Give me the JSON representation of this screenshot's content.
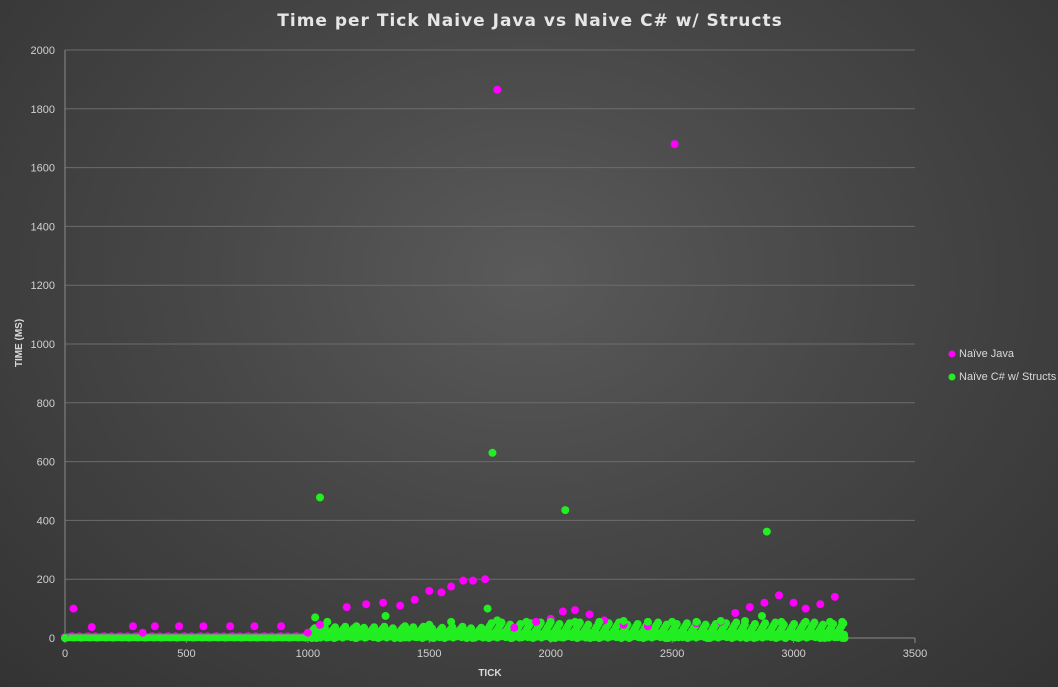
{
  "chart_data": {
    "type": "scatter",
    "title": "Time per Tick Naive Java vs Naive C# w/ Structs",
    "xlabel": "TICK",
    "ylabel": "TIME (MS)",
    "xlim": [
      0,
      3500
    ],
    "ylim": [
      0,
      2000
    ],
    "x_ticks": [
      0,
      500,
      1000,
      1500,
      2000,
      2500,
      3000,
      3500
    ],
    "y_ticks": [
      0,
      200,
      400,
      600,
      800,
      1000,
      1200,
      1400,
      1600,
      1800,
      2000
    ],
    "grid": true,
    "legend_position": "right",
    "series": [
      {
        "name": "Naïve Java",
        "color": "#ff00ff",
        "points": [
          [
            0,
            3
          ],
          [
            35,
            100
          ],
          [
            110,
            37
          ],
          [
            280,
            40
          ],
          [
            320,
            18
          ],
          [
            370,
            40
          ],
          [
            470,
            40
          ],
          [
            570,
            40
          ],
          [
            680,
            40
          ],
          [
            780,
            40
          ],
          [
            890,
            40
          ],
          [
            1000,
            18
          ],
          [
            1050,
            45
          ],
          [
            1160,
            105
          ],
          [
            1240,
            115
          ],
          [
            1310,
            120
          ],
          [
            1380,
            110
          ],
          [
            1440,
            130
          ],
          [
            1500,
            160
          ],
          [
            1550,
            155
          ],
          [
            1590,
            175
          ],
          [
            1640,
            195
          ],
          [
            1680,
            195
          ],
          [
            1730,
            200
          ],
          [
            1780,
            1865
          ],
          [
            1850,
            35
          ],
          [
            1940,
            55
          ],
          [
            2000,
            65
          ],
          [
            2050,
            90
          ],
          [
            2100,
            95
          ],
          [
            2160,
            80
          ],
          [
            2220,
            60
          ],
          [
            2300,
            45
          ],
          [
            2400,
            40
          ],
          [
            2510,
            1680
          ],
          [
            2600,
            50
          ],
          [
            2700,
            55
          ],
          [
            2760,
            85
          ],
          [
            2820,
            105
          ],
          [
            2880,
            120
          ],
          [
            2940,
            145
          ],
          [
            3000,
            120
          ],
          [
            3050,
            100
          ],
          [
            3110,
            115
          ],
          [
            3170,
            140
          ]
        ]
      },
      {
        "name": "Naïve C# w/ Structs",
        "color": "#22ee22",
        "points": [
          [
            1050,
            478
          ],
          [
            1760,
            630
          ],
          [
            2060,
            435
          ],
          [
            2890,
            362
          ],
          [
            1030,
            70
          ],
          [
            1080,
            55
          ],
          [
            1200,
            40
          ],
          [
            1320,
            75
          ],
          [
            1400,
            40
          ],
          [
            1500,
            45
          ],
          [
            1590,
            55
          ],
          [
            1740,
            100
          ],
          [
            1780,
            60
          ],
          [
            1900,
            55
          ],
          [
            2000,
            55
          ],
          [
            2100,
            55
          ],
          [
            2200,
            55
          ],
          [
            2300,
            58
          ],
          [
            2400,
            55
          ],
          [
            2500,
            55
          ],
          [
            2600,
            55
          ],
          [
            2700,
            58
          ],
          [
            2800,
            58
          ],
          [
            2870,
            75
          ],
          [
            2950,
            55
          ],
          [
            3050,
            55
          ],
          [
            3150,
            55
          ],
          [
            3200,
            55
          ],
          [
            0,
            0
          ],
          [
            3210,
            0
          ]
        ]
      }
    ]
  }
}
